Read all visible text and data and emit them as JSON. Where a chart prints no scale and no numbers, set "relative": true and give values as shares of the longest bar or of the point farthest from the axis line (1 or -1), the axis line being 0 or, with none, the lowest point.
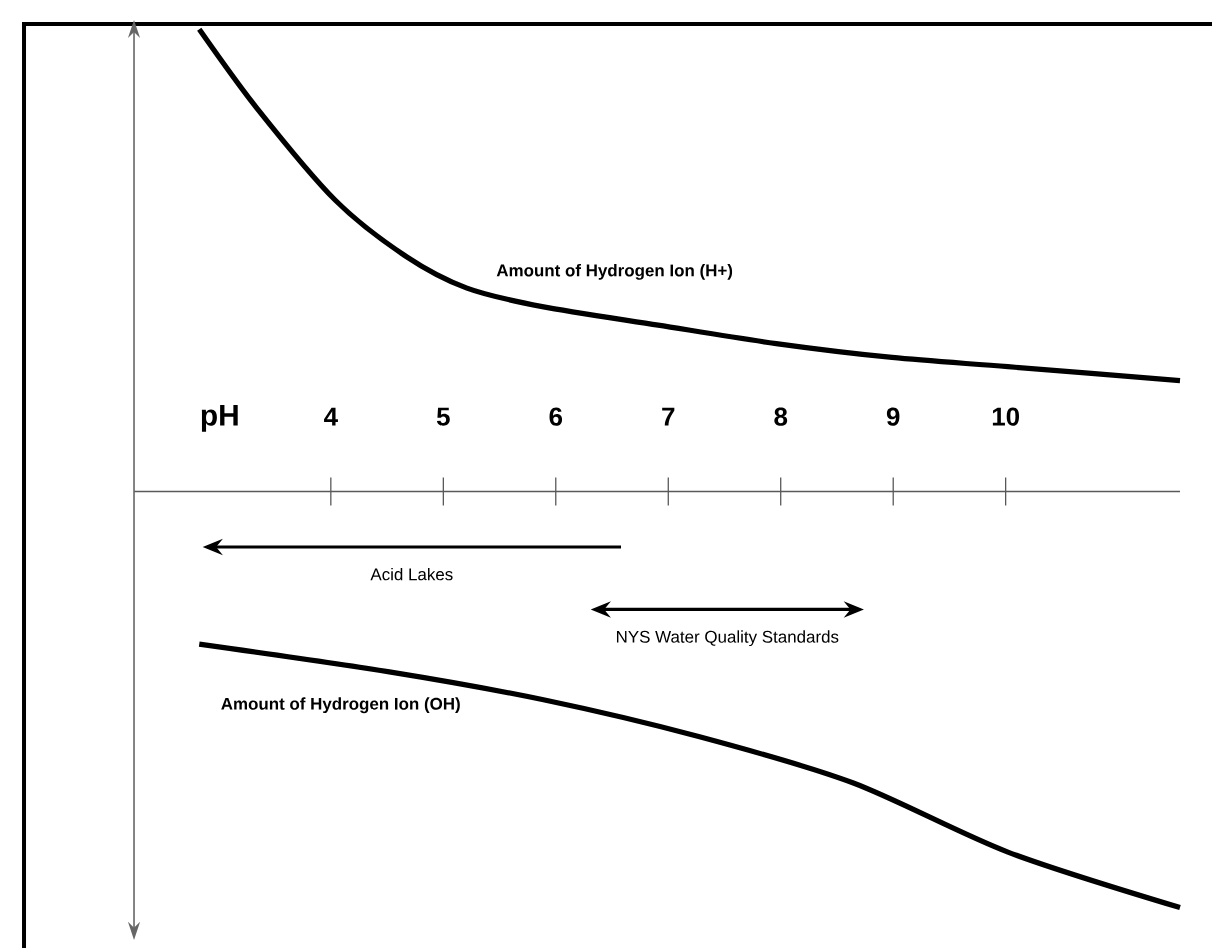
{
  "chart_data": {
    "type": "line",
    "relative": true,
    "xlabel": "pH",
    "xlim": [
      2.25,
      11.55
    ],
    "xticks": [
      4,
      5,
      6,
      7,
      8,
      9,
      10
    ],
    "series": [
      {
        "name": "Amount of Hydrogen Ion (H+)",
        "color": "#000000",
        "x": [
          2.83,
          3.34,
          4.04,
          4.66,
          5.21,
          5.88,
          6.91,
          7.96,
          8.99,
          10.02,
          11.55
        ],
        "values": [
          1,
          0.83,
          0.63,
          0.51,
          0.44,
          0.4,
          0.36,
          0.32,
          0.29,
          0.27,
          0.24
        ]
      },
      {
        "name": "Amount of Hydrogen Ion (OH)",
        "color": "#000000",
        "x": [
          2.83,
          4.52,
          5.88,
          7.27,
          8.64,
          10.02,
          11.55
        ],
        "values": [
          -0.33,
          -0.39,
          -0.45,
          -0.53,
          -0.63,
          -0.78,
          -0.9
        ]
      }
    ],
    "annotations": [
      "Acid Lakes",
      "NYS Water Quality Standards"
    ]
  }
}
